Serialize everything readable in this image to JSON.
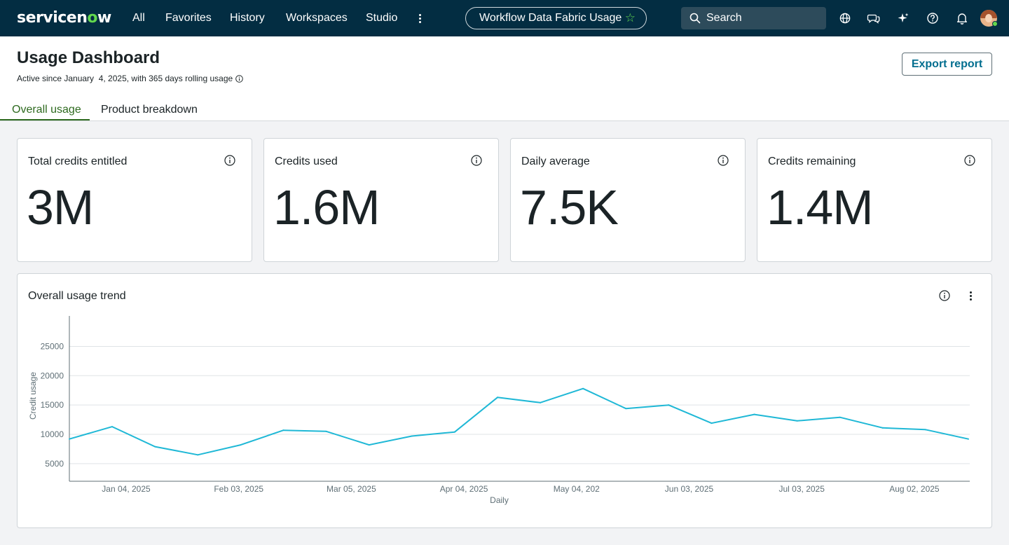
{
  "nav": {
    "logo_text_a": "servicen",
    "logo_text_o": "o",
    "logo_text_b": "w",
    "items": [
      "All",
      "Favorites",
      "History",
      "Workspaces",
      "Studio"
    ],
    "more_icon": "more-vertical-icon",
    "context_title": "Workflow Data Fabric Usage",
    "context_star": "☆",
    "search_placeholder": "Search",
    "icons": [
      "globe-icon",
      "chat-icon",
      "sparkle-icon",
      "help-icon",
      "bell-icon"
    ],
    "brand_color": "#032d42",
    "accent_green": "#62d84e"
  },
  "header": {
    "title": "Usage Dashboard",
    "subtitle": "Active since January  4, 2025, with 365 days rolling usage",
    "export_label": "Export report",
    "tabs": [
      "Overall usage",
      "Product breakdown"
    ],
    "active_tab": "Overall usage"
  },
  "stats": [
    {
      "label": "Total credits entitled",
      "value": "3M"
    },
    {
      "label": "Credits used",
      "value": "1.6M"
    },
    {
      "label": "Daily average",
      "value": "7.5K"
    },
    {
      "label": "Credits remaining",
      "value": "1.4M"
    }
  ],
  "trend": {
    "title": "Overall usage trend"
  },
  "chart_data": {
    "type": "line",
    "title": "Overall usage trend",
    "xlabel": "Daily",
    "ylabel": "Credit usage",
    "x_tick_labels": [
      "Jan 04, 2025",
      "Feb 03, 2025",
      "Mar 05, 2025",
      "Apr 04, 2025",
      "May 04, 202",
      "Jun 03, 2025",
      "Jul 03, 2025",
      "Aug 02, 2025"
    ],
    "y_ticks": [
      5000,
      10000,
      15000,
      20000,
      25000
    ],
    "ylim": [
      2000,
      27800
    ],
    "grid": true,
    "line_color": "#1fb8d6",
    "series": [
      {
        "values": [
          9200,
          11300,
          7900,
          6500,
          8200,
          10700,
          10500,
          8200,
          9700,
          10400,
          16300,
          15400,
          17800,
          14400,
          15000,
          11900,
          13400,
          12300,
          12900,
          11100,
          10800,
          9200
        ]
      }
    ]
  }
}
